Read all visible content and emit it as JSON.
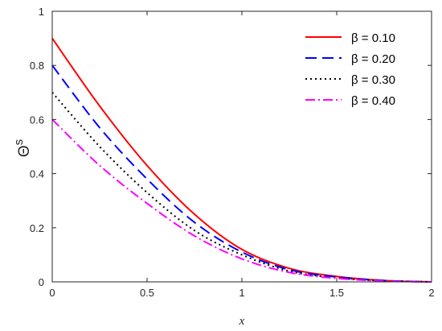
{
  "chart_data": {
    "type": "line",
    "xlabel": "x",
    "ylabel": "Θ",
    "ylabel_superscript": "s",
    "xlim": [
      0,
      2
    ],
    "ylim": [
      0,
      1
    ],
    "xticks": [
      "0",
      "0.5",
      "1",
      "1.5",
      "2"
    ],
    "yticks": [
      "0",
      "0.2",
      "0.4",
      "0.6",
      "0.8",
      "1"
    ],
    "grid": false,
    "legend_position": "top-right",
    "series": [
      {
        "name": "β = 0.10",
        "color": "#ff0000",
        "style": "solid",
        "x": [
          0,
          0.25,
          0.5,
          0.75,
          1.0,
          1.25,
          1.5,
          1.75,
          2.0
        ],
        "y": [
          0.9,
          0.65,
          0.43,
          0.25,
          0.12,
          0.05,
          0.02,
          0.005,
          0.0
        ]
      },
      {
        "name": "β = 0.20",
        "color": "#0000ff",
        "style": "dashed",
        "x": [
          0,
          0.25,
          0.5,
          0.75,
          1.0,
          1.25,
          1.5,
          1.75,
          2.0
        ],
        "y": [
          0.8,
          0.57,
          0.38,
          0.22,
          0.11,
          0.045,
          0.018,
          0.005,
          0.0
        ]
      },
      {
        "name": "β = 0.30",
        "color": "#000000",
        "style": "dotted",
        "x": [
          0,
          0.25,
          0.5,
          0.75,
          1.0,
          1.25,
          1.5,
          1.75,
          2.0
        ],
        "y": [
          0.7,
          0.5,
          0.33,
          0.19,
          0.1,
          0.04,
          0.015,
          0.004,
          0.0
        ]
      },
      {
        "name": "β = 0.40",
        "color": "#ff00ff",
        "style": "dashdot",
        "x": [
          0,
          0.25,
          0.5,
          0.75,
          1.0,
          1.25,
          1.5,
          1.75,
          2.0
        ],
        "y": [
          0.6,
          0.43,
          0.29,
          0.17,
          0.085,
          0.035,
          0.013,
          0.003,
          0.0
        ]
      }
    ]
  }
}
